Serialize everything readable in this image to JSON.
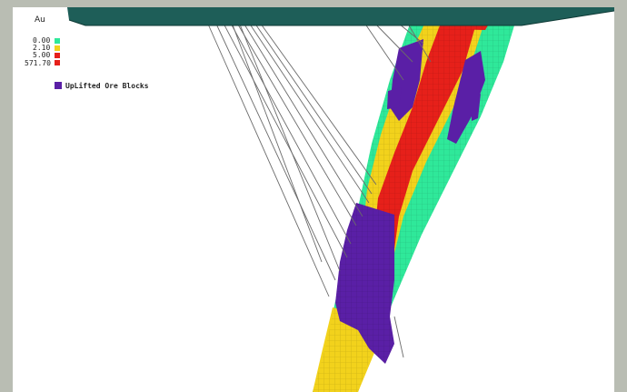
{
  "legend": {
    "title": "Au",
    "entries": [
      {
        "label": "0.00",
        "color": "#2fe89a"
      },
      {
        "label": "2.10",
        "color": "#f2d21c"
      },
      {
        "label": "5.00",
        "color": "#e6201a"
      },
      {
        "label": "571.70",
        "color": "#e6201a"
      }
    ]
  },
  "overlay": {
    "label": "UpLifted Ore Blocks",
    "color": "#5a1fa6"
  },
  "colors": {
    "surface": "#1e5e58",
    "green": "#2fe89a",
    "yellow": "#f2d21c",
    "red": "#e6201a",
    "purple": "#5a1fa6",
    "drillhole": "#6a6a6a"
  }
}
